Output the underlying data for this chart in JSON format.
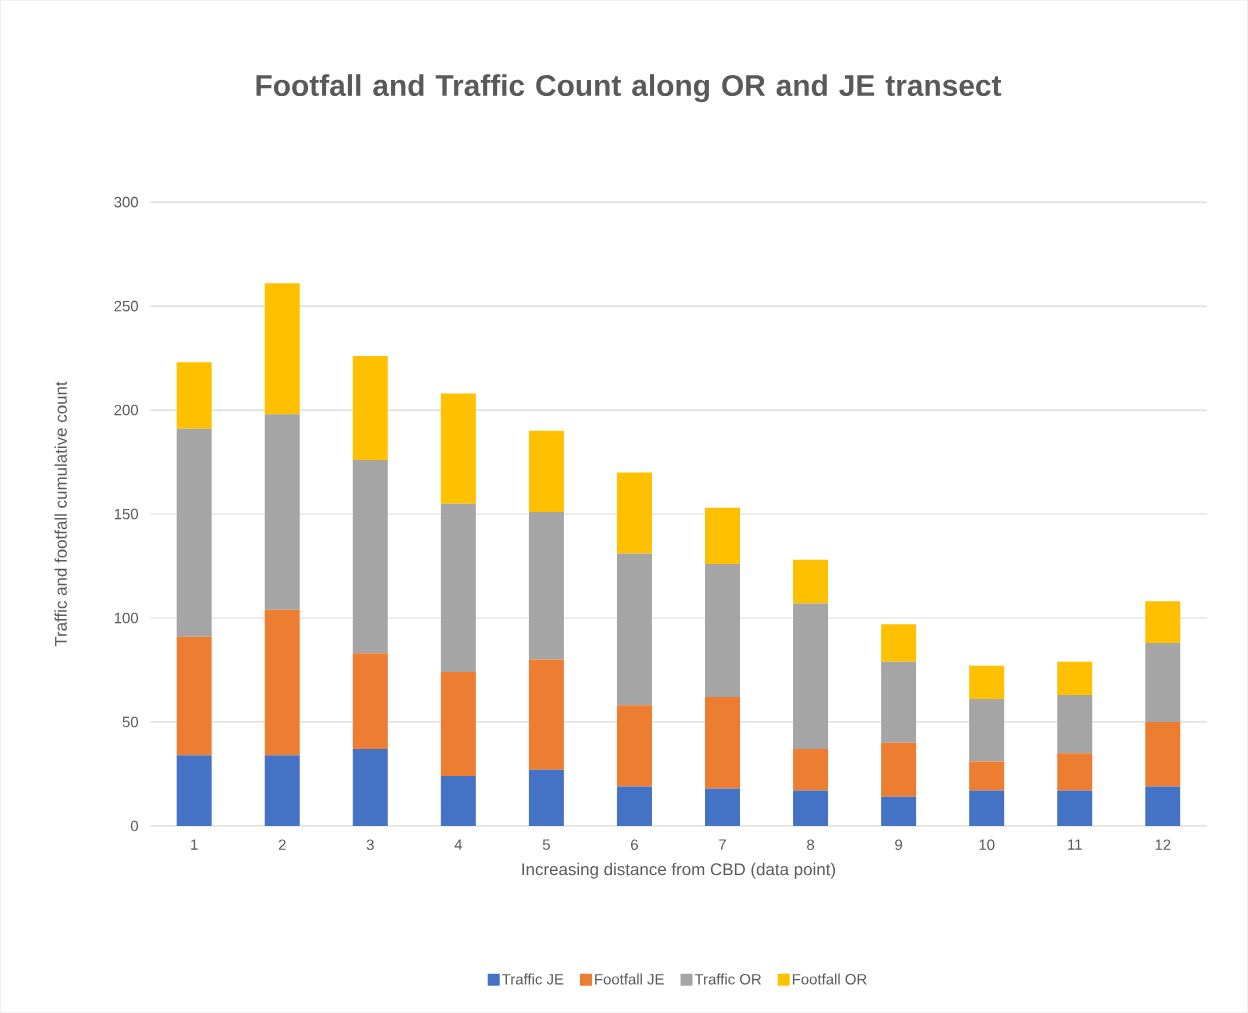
{
  "chart_data": {
    "type": "bar",
    "stacked": true,
    "title": "Footfall and Traffic Count along OR and JE transect",
    "xlabel": "Increasing distance from CBD (data point)",
    "ylabel": "Traffic and footfall cumulative count",
    "categories": [
      "1",
      "2",
      "3",
      "4",
      "5",
      "6",
      "7",
      "8",
      "9",
      "10",
      "11",
      "12"
    ],
    "series": [
      {
        "name": "Traffic JE",
        "color": "#4472c4",
        "values": [
          34,
          34,
          37,
          24,
          27,
          19,
          18,
          17,
          14,
          17,
          17,
          19
        ]
      },
      {
        "name": "Footfall JE",
        "color": "#ed7d31",
        "values": [
          57,
          70,
          46,
          50,
          53,
          39,
          44,
          20,
          26,
          14,
          18,
          31
        ]
      },
      {
        "name": "Traffic OR",
        "color": "#a5a5a5",
        "values": [
          100,
          94,
          93,
          81,
          71,
          73,
          64,
          70,
          39,
          30,
          28,
          38
        ]
      },
      {
        "name": "Footfall OR",
        "color": "#ffc000",
        "values": [
          32,
          63,
          50,
          53,
          39,
          39,
          27,
          21,
          18,
          16,
          16,
          20
        ]
      }
    ],
    "ylim": [
      0,
      300
    ],
    "yticks": [
      0,
      50,
      100,
      150,
      200,
      250,
      300
    ],
    "grid": "y",
    "legend": "bottom"
  }
}
